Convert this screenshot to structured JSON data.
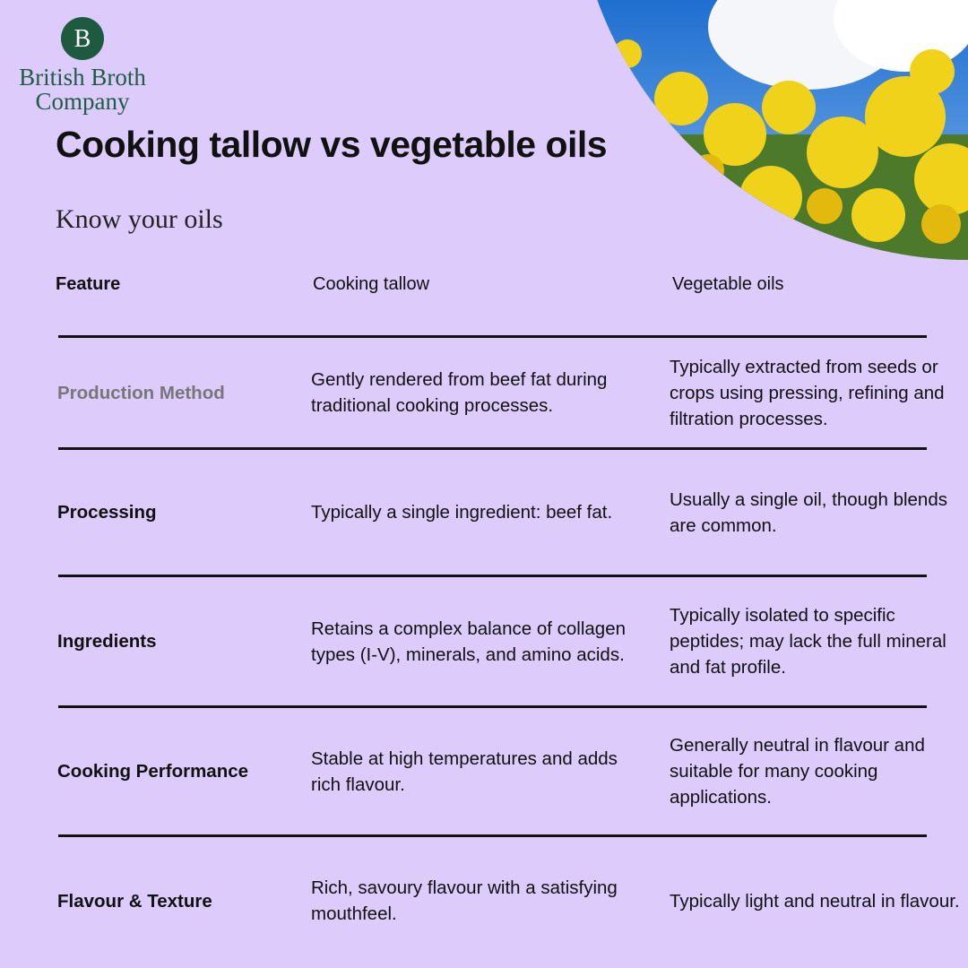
{
  "logo": {
    "line1": "British Broth",
    "line2": "Company",
    "initial": "B"
  },
  "title": "Cooking tallow vs vegetable oils",
  "subtitle": "Know your oils",
  "table": {
    "header": [
      "Feature",
      "Cooking tallow",
      "Vegetable oils"
    ],
    "rows": [
      [
        "Production Method",
        "Gently rendered from beef fat during traditional cooking processes.",
        "Typically extracted from seeds or crops using pressing, refining and filtration processes."
      ],
      [
        "Processing",
        "Typically a single ingredient: beef fat.",
        "Usually a single oil, though blends are common."
      ],
      [
        "Ingredients",
        "Retains a complex balance of collagen types (I-V), minerals, and amino acids.",
        "Typically isolated to specific peptides; may lack the full mineral and fat profile."
      ],
      [
        "Cooking Performance",
        "Stable at high temperatures and adds rich flavour.",
        "Generally neutral in flavour and suitable for many cooking applications."
      ],
      [
        "Flavour & Texture",
        "Rich, savoury flavour with a satisfying mouthfeel.",
        "Typically light and neutral in flavour."
      ]
    ]
  }
}
